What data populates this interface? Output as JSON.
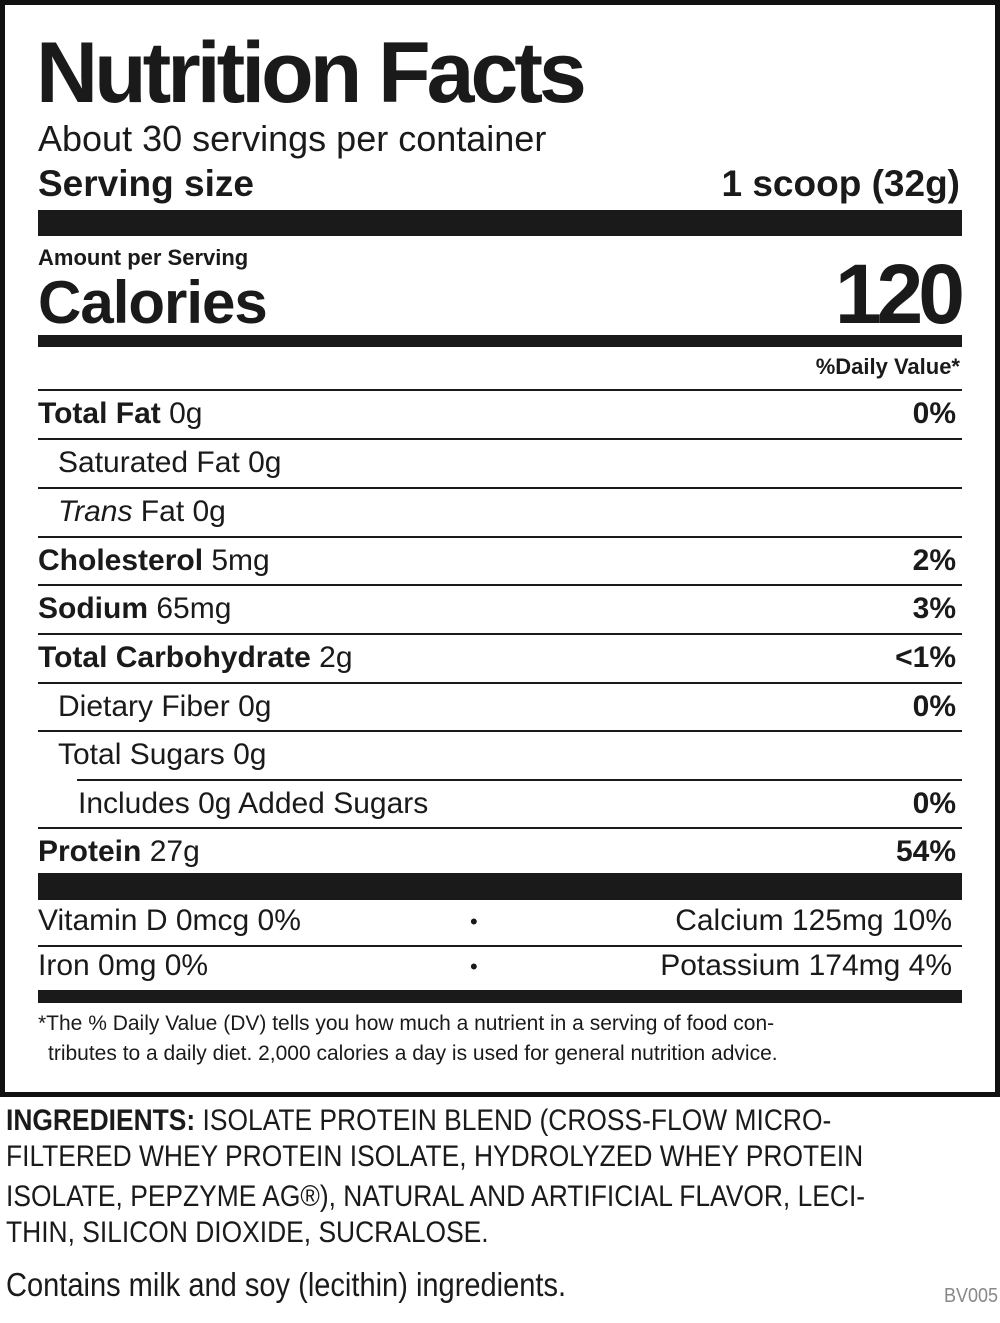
{
  "title": "Nutrition Facts",
  "servings_per_container": "About 30 servings per container",
  "serving_size": {
    "label": "Serving size",
    "value": "1 scoop (32g)"
  },
  "amount_per_serving": "Amount per Serving",
  "calories": {
    "label": "Calories",
    "value": "120"
  },
  "daily_value_header": "%Daily Value*",
  "nutrients": [
    {
      "name": "Total Fat",
      "amount": "0g",
      "dv": "0%"
    },
    {
      "name": "Saturated Fat",
      "amount": "0g",
      "dv": ""
    },
    {
      "name": "Trans",
      "name_suffix": " Fat",
      "amount": "0g",
      "dv": ""
    },
    {
      "name": "Cholesterol",
      "amount": "5mg",
      "dv": "2%"
    },
    {
      "name": "Sodium",
      "amount": "65mg",
      "dv": "3%"
    },
    {
      "name": "Total Carbohydrate",
      "amount": "2g",
      "dv": "<1%"
    },
    {
      "name": "Dietary Fiber",
      "amount": "0g",
      "dv": "0%"
    },
    {
      "name": "Total Sugars",
      "amount": "0g",
      "dv": ""
    },
    {
      "name": "Includes 0g Added Sugars",
      "amount": "",
      "dv": "0%"
    },
    {
      "name": "Protein",
      "amount": "27g",
      "dv": "54%"
    }
  ],
  "vitamins": [
    {
      "left": "Vitamin D 0mcg 0%",
      "right": "Calcium 125mg 10%"
    },
    {
      "left": "Iron 0mg 0%",
      "right": "Potassium 174mg 4%"
    }
  ],
  "separator": "•",
  "footnote": [
    "*The % Daily Value (DV) tells you how much a nutrient in a serving of food con-",
    "tributes to a daily diet. 2,000 calories a day is used for general nutrition advice."
  ],
  "ingredients": {
    "label": "INGREDIENTS:",
    "lines": [
      " ISOLATE PROTEIN BLEND (CROSS-FLOW MICRO-",
      "FILTERED WHEY PROTEIN ISOLATE, HYDROLYZED WHEY PROTEIN",
      "ISOLATE, PEPZYME AG®), NATURAL AND ARTIFICIAL FLAVOR, LECI-",
      "THIN, SILICON DIOXIDE, SUCRALOSE."
    ]
  },
  "allergen": "Contains milk and soy (lecithin) ingredients.",
  "code": "BV005"
}
